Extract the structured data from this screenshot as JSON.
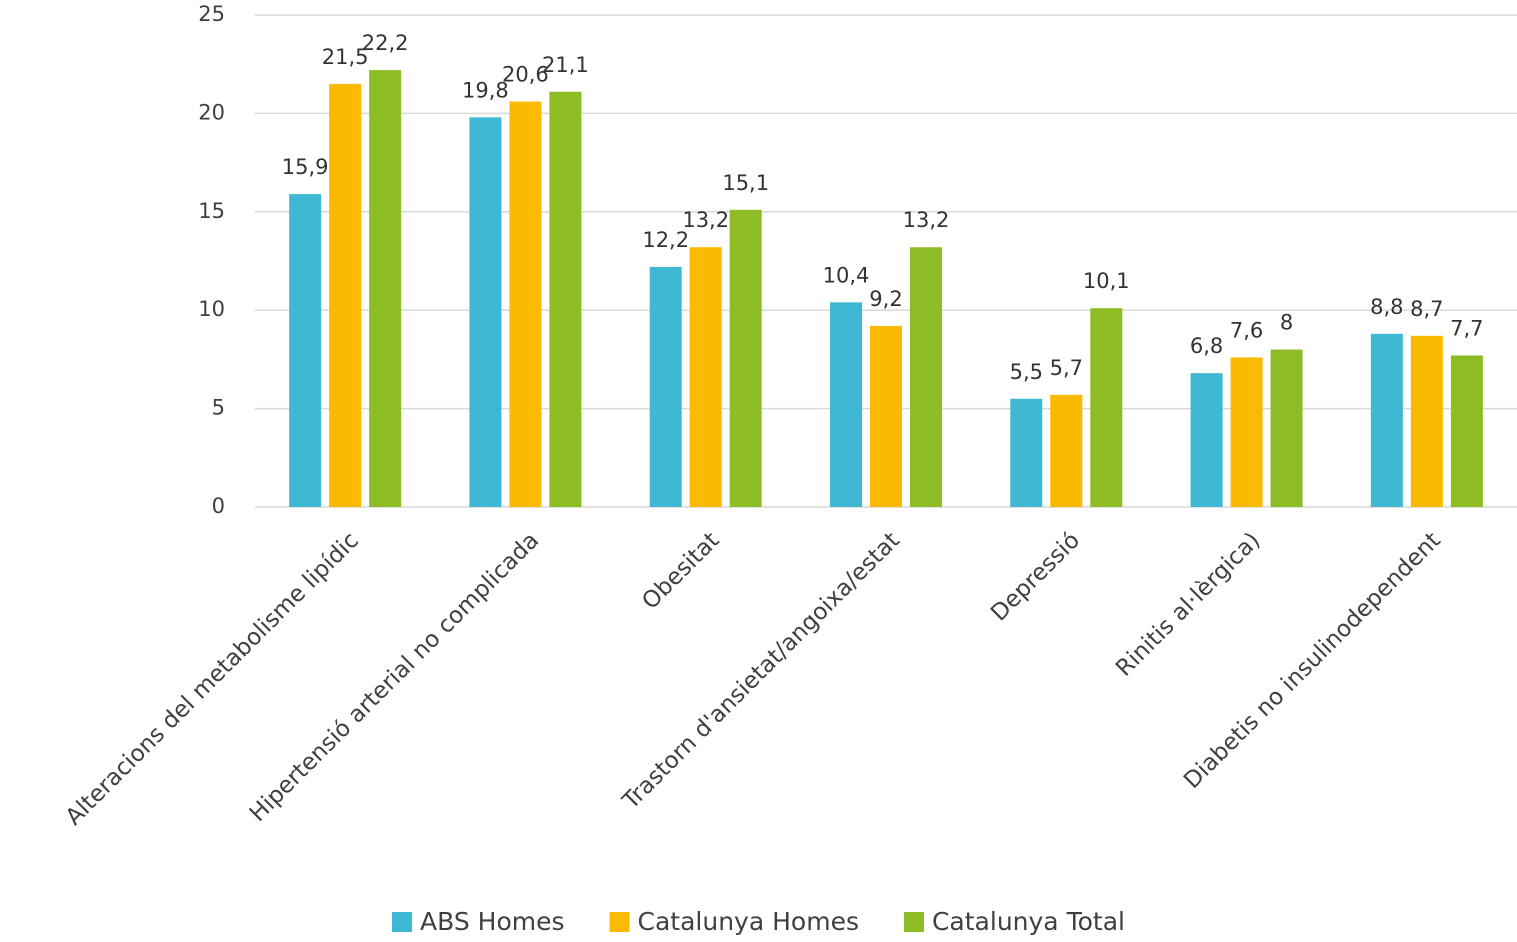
{
  "chart_data": {
    "type": "bar",
    "categories": [
      "Alteracions del metabolisme lipídic",
      "Hipertensió arterial no complicada",
      "Obesitat",
      "Trastorn d'ansietat/angoixa/estat",
      "Depressió",
      "Rinitis al·lèrgica)",
      "Diabetis no insulinodependent"
    ],
    "series": [
      {
        "name": "ABS Homes",
        "color": "#3fb8d3",
        "values": [
          15.9,
          19.8,
          12.2,
          10.4,
          5.5,
          6.8,
          8.8
        ],
        "value_labels": [
          "15,9",
          "19,8",
          "12,2",
          "10,4",
          "5,5",
          "6,8",
          "8,8"
        ]
      },
      {
        "name": "Catalunya Homes",
        "color": "#fbb900",
        "values": [
          21.5,
          20.6,
          13.2,
          9.2,
          5.7,
          7.6,
          8.7
        ],
        "value_labels": [
          "21,5",
          "20,6",
          "13,2",
          "9,2",
          "5,7",
          "7,6",
          "8,7"
        ]
      },
      {
        "name": "Catalunya Total",
        "color": "#8ebc24",
        "values": [
          22.2,
          21.1,
          15.1,
          13.2,
          10.1,
          8,
          7.7
        ],
        "value_labels": [
          "22,2",
          "21,1",
          "15,1",
          "13,2",
          "10,1",
          "8",
          "7,7"
        ]
      }
    ],
    "ylim": [
      0,
      25
    ],
    "yticks": [
      0,
      5,
      10,
      15,
      20,
      25
    ],
    "grid": true,
    "legend": "bottom"
  }
}
